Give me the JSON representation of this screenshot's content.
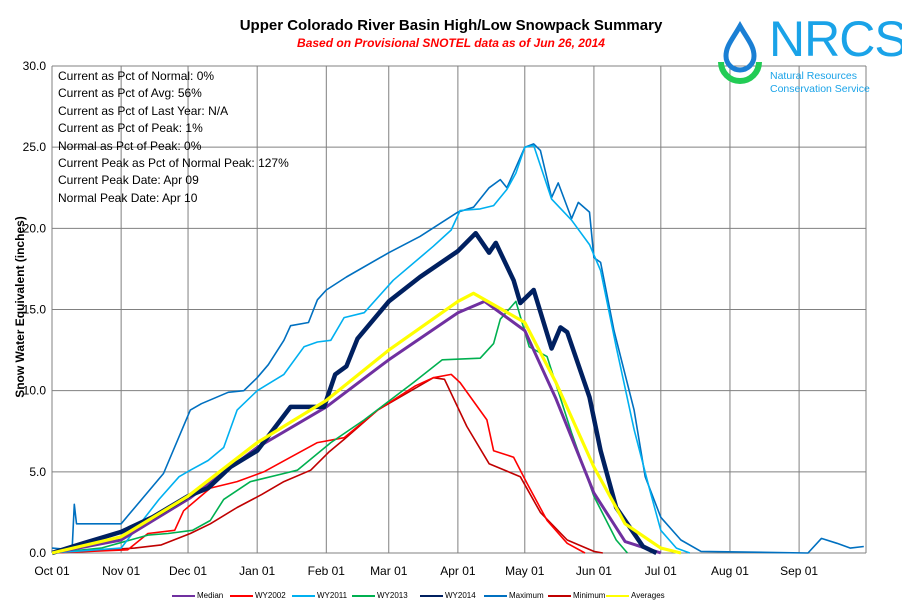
{
  "chart_data": {
    "type": "line",
    "title": "Upper Colorado River Basin High/Low Snowpack Summary",
    "subtitle": "Based on Provisional SNOTEL data as of Jun 26, 2014",
    "xlabel": "",
    "ylabel": "Snow Water Equivalent (inches)",
    "ylim": [
      0,
      30
    ],
    "yticks": [
      "0.0",
      "5.0",
      "10.0",
      "15.0",
      "20.0",
      "25.0",
      "30.0"
    ],
    "xticks": [
      "Oct 01",
      "Nov 01",
      "Dec 01",
      "Jan 01",
      "Feb 01",
      "Mar 01",
      "Apr 01",
      "May 01",
      "Jun 01",
      "Jul 01",
      "Aug 01",
      "Sep 01"
    ],
    "xlim": [
      "Oct 01",
      "Sep 30"
    ],
    "grid": true,
    "legend_position": "bottom",
    "series": [
      {
        "name": "Median",
        "color": "#7030a0",
        "x": [
          "Oct 01",
          "Nov 01",
          "Dec 02",
          "Jan 01",
          "Feb 01",
          "Mar 01",
          "Apr 01",
          "Apr 13",
          "May 01",
          "May 15",
          "Jun 01",
          "Jun 15",
          "Jul 01"
        ],
        "y": [
          0,
          0.8,
          3.4,
          6.5,
          9.0,
          11.9,
          14.8,
          15.5,
          13.7,
          9.5,
          3.7,
          0.7,
          0
        ]
      },
      {
        "name": "WY2002",
        "color": "#ff0000",
        "x": [
          "Oct 01",
          "Nov 04",
          "Nov 13",
          "Nov 25",
          "Nov 29",
          "Dec 11",
          "Dec 23",
          "Jan 04",
          "Jan 16",
          "Jan 28",
          "Feb 09",
          "Feb 24",
          "Mar 13",
          "Mar 21",
          "Mar 29",
          "Apr 02",
          "Apr 14",
          "Apr 17",
          "Apr 26",
          "May 02",
          "May 11",
          "May 20",
          "May 28"
        ],
        "y": [
          0,
          0.2,
          1.2,
          1.4,
          2.6,
          4.0,
          4.4,
          5.0,
          5.9,
          6.8,
          7.1,
          8.8,
          10.3,
          10.8,
          11.0,
          10.5,
          8.2,
          6.3,
          5.9,
          4.3,
          2.0,
          0.6,
          0
        ]
      },
      {
        "name": "WY2011",
        "color": "#00b0f0",
        "x": [
          "Oct 01",
          "Nov 01",
          "Nov 18",
          "Nov 27",
          "Dec 02",
          "Dec 10",
          "Dec 17",
          "Dec 23",
          "Jan 01",
          "Jan 13",
          "Jan 22",
          "Jan 28",
          "Feb 03",
          "Feb 09",
          "Feb 18",
          "Mar 03",
          "Mar 21",
          "Mar 29",
          "Apr 02",
          "Apr 11",
          "Apr 17",
          "Apr 23",
          "Apr 27",
          "May 01",
          "May 05",
          "May 13",
          "May 22",
          "May 30",
          "Jun 04",
          "Jun 11",
          "Jun 19",
          "Jun 26",
          "Jul 01",
          "Jul 08",
          "Jul 14"
        ],
        "y": [
          0,
          0.3,
          3.3,
          4.7,
          5.1,
          5.7,
          6.5,
          8.8,
          10.0,
          11.0,
          12.7,
          13.0,
          13.1,
          14.5,
          14.8,
          16.8,
          18.9,
          19.9,
          21.1,
          21.2,
          21.4,
          22.4,
          23.4,
          25.0,
          25.1,
          21.8,
          20.5,
          19.0,
          17.4,
          12.7,
          7.6,
          3.9,
          1.4,
          0.3,
          0
        ]
      },
      {
        "name": "WY2013",
        "color": "#00b050",
        "x": [
          "Oct 01",
          "Oct 23",
          "Nov 13",
          "Nov 22",
          "Dec 03",
          "Dec 11",
          "Dec 17",
          "Dec 29",
          "Jan 13",
          "Jan 19",
          "Feb 03",
          "Feb 18",
          "Mar 12",
          "Mar 25",
          "Apr 11",
          "Apr 17",
          "Apr 20",
          "Apr 27",
          "May 03",
          "May 11",
          "May 22",
          "Jun 01",
          "Jun 11",
          "Jun 16"
        ],
        "y": [
          0,
          0.3,
          1.1,
          1.2,
          1.4,
          2.0,
          3.3,
          4.4,
          4.9,
          5.1,
          6.8,
          8.2,
          10.5,
          11.9,
          12.0,
          12.9,
          14.4,
          15.5,
          12.7,
          12.1,
          7.4,
          3.5,
          0.8,
          0
        ]
      },
      {
        "name": "WY2014",
        "color": "#002060",
        "x": [
          "Oct 01",
          "Oct 15",
          "Nov 01",
          "Nov 15",
          "Dec 01",
          "Dec 10",
          "Dec 20",
          "Jan 01",
          "Jan 16",
          "Jan 31",
          "Feb 05",
          "Feb 10",
          "Feb 15",
          "Mar 01",
          "Mar 15",
          "Apr 01",
          "Apr 09",
          "Apr 15",
          "Apr 18",
          "Apr 26",
          "Apr 29",
          "May 05",
          "May 13",
          "May 17",
          "May 20",
          "May 30",
          "Jun 04",
          "Jun 11",
          "Jun 23",
          "Jun 29"
        ],
        "y": [
          0,
          0.6,
          1.3,
          2.2,
          3.5,
          4.0,
          5.3,
          6.3,
          9.0,
          9.0,
          11.0,
          11.5,
          13.2,
          15.5,
          17.0,
          18.6,
          19.7,
          18.5,
          19.1,
          16.8,
          15.4,
          16.2,
          12.6,
          13.9,
          13.6,
          9.6,
          6.3,
          2.8,
          0.4,
          0
        ]
      },
      {
        "name": "Maximum",
        "color": "#0070c0",
        "x": [
          "Oct 01",
          "Oct 10",
          "Oct 11",
          "Oct 12",
          "Nov 01",
          "Nov 20",
          "Dec 02",
          "Dec 07",
          "Dec 19",
          "Dec 26",
          "Jan 01",
          "Jan 06",
          "Jan 13",
          "Jan 16",
          "Jan 24",
          "Jan 28",
          "Feb 01",
          "Feb 10",
          "Mar 01",
          "Mar 15",
          "Apr 01",
          "Apr 08",
          "Apr 15",
          "Apr 20",
          "Apr 23",
          "May 01",
          "May 05",
          "May 08",
          "May 13",
          "May 16",
          "May 22",
          "May 25",
          "May 30",
          "Jun 01",
          "Jun 04",
          "Jun 10",
          "Jun 19",
          "Jun 24",
          "Jul 01",
          "Jul 10",
          "Jul 19",
          "Sep 05",
          "Sep 11",
          "Sep 18",
          "Sep 24",
          "Sep 30"
        ],
        "y": [
          0.3,
          0.2,
          3.0,
          1.8,
          1.8,
          4.9,
          8.8,
          9.2,
          9.9,
          10.0,
          10.8,
          11.6,
          13.1,
          14.0,
          14.2,
          15.6,
          16.2,
          17.0,
          18.5,
          19.5,
          21.0,
          21.3,
          22.5,
          23.0,
          22.5,
          25.0,
          25.2,
          24.8,
          21.9,
          22.8,
          20.6,
          21.6,
          21.0,
          18.2,
          17.9,
          13.7,
          8.8,
          4.7,
          2.2,
          0.8,
          0.1,
          0,
          0.9,
          0.6,
          0.3,
          0.4
        ]
      },
      {
        "name": "Minimum",
        "color": "#c00000",
        "x": [
          "Oct 01",
          "Nov 07",
          "Nov 19",
          "Dec 02",
          "Dec 11",
          "Dec 23",
          "Jan 03",
          "Jan 13",
          "Jan 25",
          "Feb 02",
          "Feb 09",
          "Feb 24",
          "Mar 21",
          "Mar 26",
          "Apr 05",
          "Apr 15",
          "Apr 29",
          "May 08",
          "May 20",
          "Jun 01",
          "Jun 05"
        ],
        "y": [
          0,
          0.3,
          0.5,
          1.2,
          1.8,
          2.8,
          3.6,
          4.4,
          5.1,
          6.2,
          7.0,
          8.8,
          10.8,
          10.7,
          7.8,
          5.5,
          4.7,
          2.5,
          0.8,
          0.1,
          0
        ]
      },
      {
        "name": "Averages",
        "color": "#ffff00",
        "x": [
          "Oct 01",
          "Nov 01",
          "Dec 01",
          "Jan 01",
          "Feb 01",
          "Mar 01",
          "Apr 01",
          "Apr 08",
          "May 01",
          "May 15",
          "Jun 01",
          "Jun 15",
          "Jul 01",
          "Jul 10"
        ],
        "y": [
          0,
          1.0,
          3.5,
          6.8,
          9.4,
          12.5,
          15.5,
          16.0,
          14.2,
          10.5,
          5.3,
          1.8,
          0.3,
          0
        ]
      }
    ]
  },
  "stats": [
    "Current  as Pct of Normal: 0%",
    "Current  as Pct of Avg: 56%",
    "Current  as Pct of Last Year: N/A",
    "Current  as Pct of Peak: 1%",
    "Normal  as Pct of Peak: 0%",
    "Current  Peak as Pct of Normal  Peak: 127%",
    "Current  Peak Date: Apr 09",
    "Normal  Peak Date: Apr 10"
  ],
  "logo": {
    "acronym": "NRCS",
    "line1": "Natural Resources",
    "line2": "Conservation Service",
    "color": "#1aa3e8",
    "icon": "water-drop-icon"
  }
}
